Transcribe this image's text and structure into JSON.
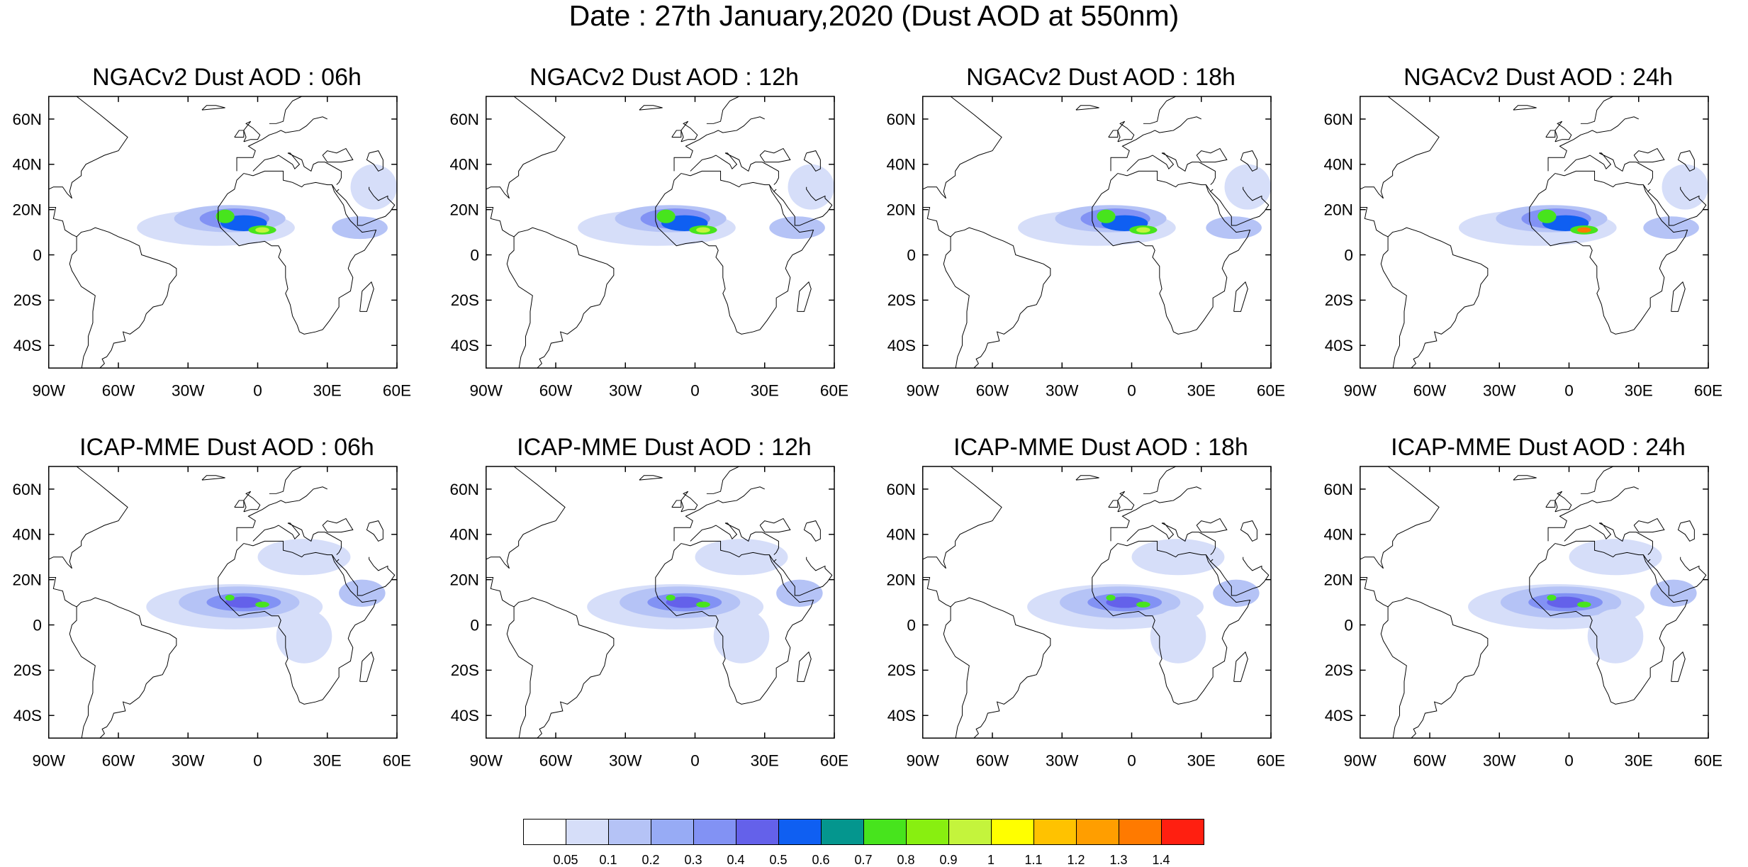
{
  "figure": {
    "title": "Date : 27th January,2020 (Dust AOD at 550nm)"
  },
  "axes": {
    "lat_ticks": [
      "60N",
      "40N",
      "20N",
      "0",
      "20S",
      "40S"
    ],
    "lon_ticks": [
      "90W",
      "60W",
      "30W",
      "0",
      "30E",
      "60E"
    ]
  },
  "panels": [
    {
      "title": "NGACv2 Dust AOD : 06h",
      "model": "NGACv2",
      "hour": "06h",
      "peak_aod_range": "0.9-1.1"
    },
    {
      "title": "NGACv2 Dust AOD : 12h",
      "model": "NGACv2",
      "hour": "12h",
      "peak_aod_range": "0.9-1.0"
    },
    {
      "title": "NGACv2 Dust AOD : 18h",
      "model": "NGACv2",
      "hour": "18h",
      "peak_aod_range": "0.9-1.1"
    },
    {
      "title": "NGACv2 Dust AOD : 24h",
      "model": "NGACv2",
      "hour": "24h",
      "peak_aod_range": "1.2-1.4"
    },
    {
      "title": "ICAP-MME Dust AOD : 06h",
      "model": "ICAP-MME",
      "hour": "06h",
      "peak_aod_range": "0.7-0.8"
    },
    {
      "title": "ICAP-MME Dust AOD : 12h",
      "model": "ICAP-MME",
      "hour": "12h",
      "peak_aod_range": "0.7-0.8"
    },
    {
      "title": "ICAP-MME Dust AOD : 18h",
      "model": "ICAP-MME",
      "hour": "18h",
      "peak_aod_range": "0.7-0.8"
    },
    {
      "title": "ICAP-MME Dust AOD : 24h",
      "model": "ICAP-MME",
      "hour": "24h",
      "peak_aod_range": "0.7-0.8"
    }
  ],
  "colorbar": {
    "labels": [
      "0.05",
      "0.1",
      "0.2",
      "0.3",
      "0.4",
      "0.5",
      "0.6",
      "0.7",
      "0.8",
      "0.9",
      "1",
      "1.1",
      "1.2",
      "1.3",
      "1.4"
    ],
    "colors": [
      "#ffffff",
      "#d6def9",
      "#b5c3f6",
      "#97abf5",
      "#8292f4",
      "#6461ea",
      "#0f5ff2",
      "#04968e",
      "#47e41d",
      "#88ef10",
      "#c4f43c",
      "#ffff00",
      "#ffc200",
      "#ff9e00",
      "#ff7a00",
      "#ff1f10"
    ]
  }
}
